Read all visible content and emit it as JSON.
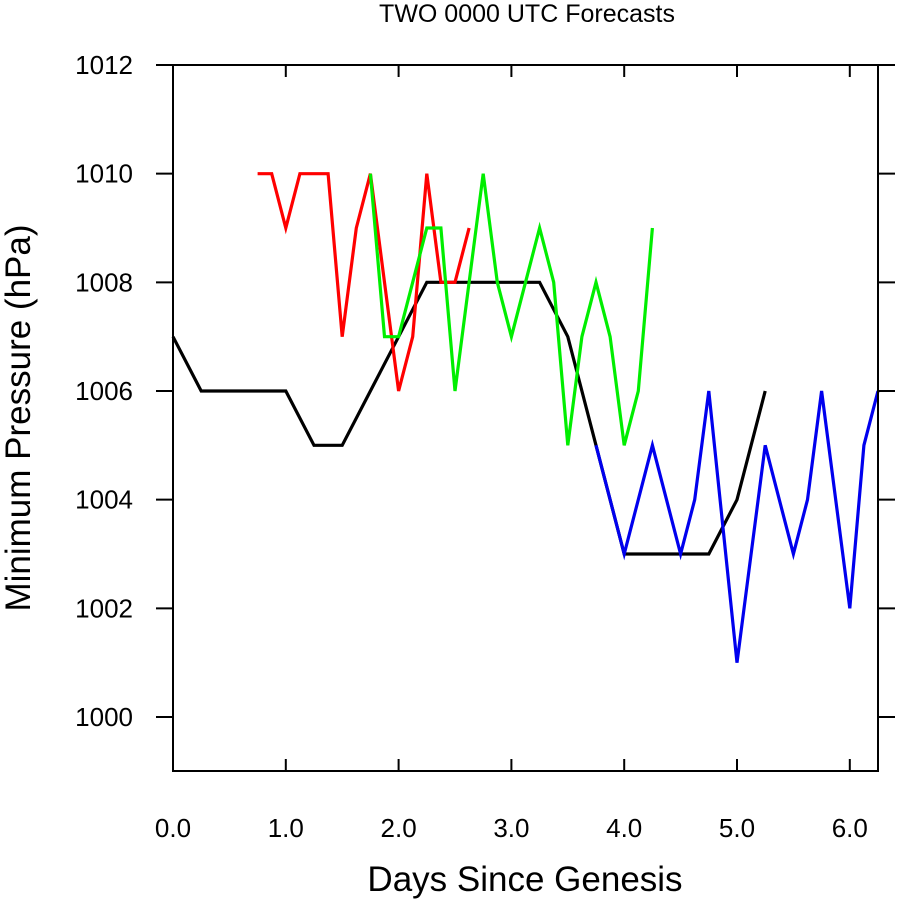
{
  "chart_data": {
    "type": "line",
    "title": "TWO 0000 UTC Forecasts",
    "xlabel": "Days Since Genesis",
    "ylabel": "Minimum Pressure (hPa)",
    "xlim": [
      0.0,
      6.25
    ],
    "ylim": [
      999.0,
      1012.0
    ],
    "x_ticks": [
      0.0,
      1.0,
      2.0,
      3.0,
      4.0,
      5.0,
      6.0
    ],
    "x_tick_labels": [
      "0.0",
      "1.0",
      "2.0",
      "3.0",
      "4.0",
      "5.0",
      "6.0"
    ],
    "y_ticks": [
      1000,
      1002,
      1004,
      1006,
      1008,
      1010,
      1012
    ],
    "y_tick_labels": [
      "1000",
      "1002",
      "1004",
      "1006",
      "1008",
      "1010",
      "1012"
    ],
    "grid": false,
    "legend": "none",
    "series": [
      {
        "color": "#000000",
        "x": [
          0.0,
          0.25,
          0.5,
          0.75,
          1.0,
          1.25,
          1.5,
          1.75,
          2.0,
          2.25,
          2.5,
          2.75,
          3.0,
          3.25,
          3.5,
          3.75,
          4.0,
          4.25,
          4.5,
          4.75,
          5.0,
          5.25
        ],
        "y": [
          1007,
          1006,
          1006,
          1006,
          1006,
          1005,
          1005,
          1006,
          1007,
          1008,
          1008,
          1008,
          1008,
          1008,
          1007,
          1005,
          1003,
          1003,
          1003,
          1003,
          1004,
          1006
        ]
      },
      {
        "color": "#ff0000",
        "x": [
          0.75,
          0.875,
          1.0,
          1.125,
          1.25,
          1.375,
          1.5,
          1.625,
          1.75,
          1.875,
          2.0,
          2.125,
          2.25,
          2.375,
          2.5,
          2.625
        ],
        "y": [
          1010,
          1010,
          1009,
          1010,
          1010,
          1010,
          1007,
          1009,
          1010,
          1008,
          1006,
          1007,
          1010,
          1008,
          1008,
          1009
        ]
      },
      {
        "color": "#00ee00",
        "x": [
          1.75,
          1.875,
          2.0,
          2.125,
          2.25,
          2.375,
          2.5,
          2.625,
          2.75,
          2.875,
          3.0,
          3.125,
          3.25,
          3.375,
          3.5,
          3.625,
          3.75,
          3.875,
          4.0,
          4.125,
          4.25
        ],
        "y": [
          1010,
          1007,
          1007,
          1008,
          1009,
          1009,
          1006,
          1008,
          1010,
          1008,
          1007,
          1008,
          1009,
          1008,
          1005,
          1007,
          1008,
          1007,
          1005,
          1006,
          1009
        ]
      },
      {
        "color": "#0000ee",
        "x": [
          3.75,
          4.0,
          4.25,
          4.5,
          4.625,
          4.75,
          5.0,
          5.25,
          5.5,
          5.625,
          5.75,
          6.0,
          6.125,
          6.25
        ],
        "y": [
          1005,
          1003,
          1005,
          1003,
          1004,
          1006,
          1001,
          1005,
          1003,
          1004,
          1006,
          1002,
          1005,
          1006
        ]
      }
    ]
  }
}
